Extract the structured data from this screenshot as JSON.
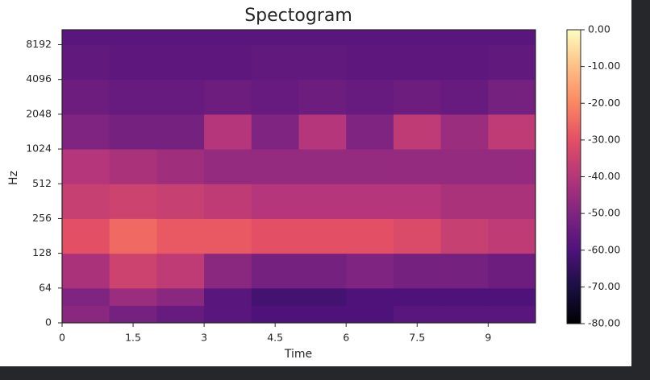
{
  "chart_data": {
    "type": "heatmap",
    "title": "Spectogram",
    "x_label": "Time",
    "y_label": "Hz",
    "xlim": [
      0,
      10
    ],
    "xticks": [
      0,
      1.5,
      3,
      4.5,
      6,
      7.5,
      9
    ],
    "ylim": [
      0,
      11025
    ],
    "y_scale": "log2-above-64",
    "yticks": [
      0,
      64,
      128,
      256,
      512,
      1024,
      2048,
      4096,
      8192
    ],
    "x_bins": [
      0,
      1,
      2,
      3,
      4,
      5,
      6,
      7,
      8,
      9,
      10
    ],
    "y_bins": [
      0,
      32,
      64,
      128,
      256,
      512,
      1024,
      2048,
      4096,
      8192,
      11025
    ],
    "z": [
      [
        -48,
        -52,
        -55,
        -58,
        -60,
        -60,
        -60,
        -58,
        -58,
        -58
      ],
      [
        -50,
        -45,
        -48,
        -58,
        -62,
        -62,
        -60,
        -60,
        -60,
        -60
      ],
      [
        -42,
        -35,
        -38,
        -48,
        -52,
        -52,
        -50,
        -52,
        -52,
        -54
      ],
      [
        -30,
        -25,
        -28,
        -28,
        -30,
        -30,
        -30,
        -32,
        -36,
        -38
      ],
      [
        -36,
        -35,
        -36,
        -38,
        -40,
        -40,
        -40,
        -40,
        -42,
        -42
      ],
      [
        -40,
        -42,
        -44,
        -46,
        -46,
        -46,
        -46,
        -46,
        -46,
        -46
      ],
      [
        -50,
        -52,
        -52,
        -40,
        -50,
        -40,
        -50,
        -38,
        -45,
        -38
      ],
      [
        -54,
        -55,
        -55,
        -54,
        -55,
        -54,
        -55,
        -54,
        -55,
        -52
      ],
      [
        -56,
        -57,
        -57,
        -57,
        -56,
        -56,
        -57,
        -57,
        -57,
        -56
      ],
      [
        -58,
        -58,
        -58,
        -58,
        -58,
        -58,
        -58,
        -58,
        -58,
        -58
      ]
    ],
    "colormap": "magma",
    "clim": [
      -80,
      0
    ],
    "cticks": [
      {
        "value": 0,
        "label": "0.00"
      },
      {
        "value": -10,
        "label": "-10.00"
      },
      {
        "value": -20,
        "label": "-20.00"
      },
      {
        "value": -30,
        "label": "-30.00"
      },
      {
        "value": -40,
        "label": "-40.00"
      },
      {
        "value": -50,
        "label": "-50.00"
      },
      {
        "value": -60,
        "label": "-60.00"
      },
      {
        "value": -70,
        "label": "-70.00"
      },
      {
        "value": -80,
        "label": "-80.00"
      }
    ]
  }
}
